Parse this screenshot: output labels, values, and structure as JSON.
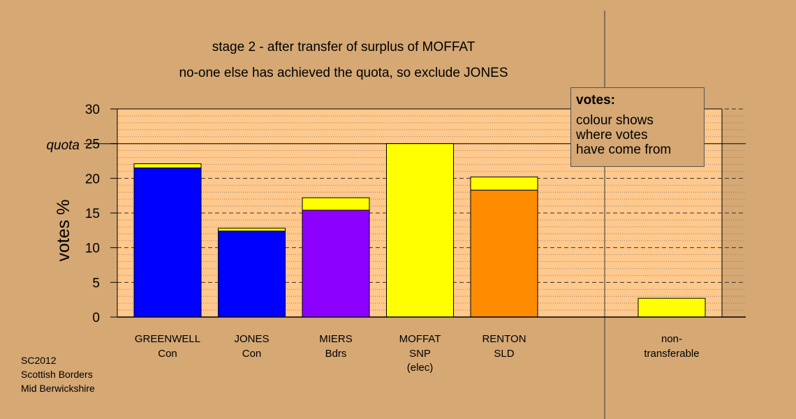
{
  "chart_data": {
    "type": "bar",
    "title": "stage 2 - after transfer of surplus of MOFFAT",
    "subtitle": "no-one else has achieved the quota, so exclude JONES",
    "ylabel": "votes %",
    "ylim": [
      0,
      30
    ],
    "yticks": [
      "0",
      "5",
      "10",
      "15",
      "20",
      "25",
      "30"
    ],
    "quota": {
      "label": "quota",
      "value": 25
    },
    "grid": true,
    "categories": [
      {
        "name": "GREENWELL",
        "party": "Con",
        "note": ""
      },
      {
        "name": "JONES",
        "party": "Con",
        "note": ""
      },
      {
        "name": "MIERS",
        "party": "Bdrs",
        "note": ""
      },
      {
        "name": "MOFFAT",
        "party": "SNP",
        "note": "(elec)"
      },
      {
        "name": "RENTON",
        "party": "SLD",
        "note": ""
      }
    ],
    "bars": [
      {
        "segments": [
          {
            "value": 21.5,
            "color": "#0000ff"
          },
          {
            "value": 0.6,
            "color": "#ffff00"
          }
        ]
      },
      {
        "segments": [
          {
            "value": 12.4,
            "color": "#0000ff"
          },
          {
            "value": 0.4,
            "color": "#ffff00"
          }
        ]
      },
      {
        "segments": [
          {
            "value": 15.4,
            "color": "#8c00ff"
          },
          {
            "value": 1.8,
            "color": "#ffff00"
          }
        ]
      },
      {
        "segments": [
          {
            "value": 25.0,
            "color": "#ffff00"
          }
        ]
      },
      {
        "segments": [
          {
            "value": 18.3,
            "color": "#ff8c00"
          },
          {
            "value": 1.9,
            "color": "#ffff00"
          }
        ]
      }
    ],
    "nontransferable": {
      "label_line1": "non-",
      "label_line2": "transferable",
      "value": 2.7,
      "color": "#ffff00"
    },
    "colors": {
      "background": "#d5a874",
      "plot_area": "#ffc88c"
    }
  },
  "legend": {
    "title": "votes:",
    "lines": [
      "colour shows",
      "where votes",
      "have come from"
    ],
    "position": "top-right"
  },
  "footer": {
    "line1": "SC2012",
    "line2": "Scottish Borders",
    "line3": "Mid Berwickshire"
  }
}
